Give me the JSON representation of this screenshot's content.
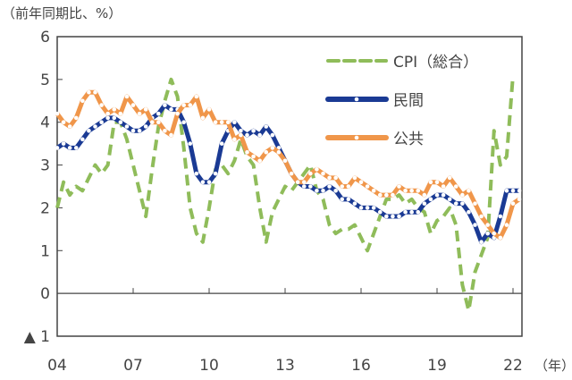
{
  "chart_data": {
    "type": "line",
    "ylabel": "（前年同期比、%）",
    "xlabel_unit": "（年）",
    "ylim": [
      -1,
      6
    ],
    "yticks": [
      6,
      5,
      4,
      3,
      2,
      1,
      0,
      -1
    ],
    "ytick_labels": [
      "6",
      "5",
      "4",
      "3",
      "2",
      "1",
      "0",
      "▲ 1"
    ],
    "xtick_labels": [
      "04",
      "07",
      "10",
      "13",
      "16",
      "19",
      "22"
    ],
    "x_start": "2004Q1",
    "frequency": "quarterly",
    "grid": false,
    "legend_position": "top-right",
    "series": [
      {
        "name": "CPI（総合）",
        "color": "#8fbc5a",
        "style": "dashed",
        "values": [
          2.0,
          2.6,
          2.3,
          2.5,
          2.4,
          2.7,
          3.0,
          2.8,
          3.0,
          4.0,
          4.0,
          3.6,
          3.0,
          2.4,
          1.8,
          2.9,
          3.9,
          4.5,
          5.0,
          4.6,
          3.4,
          2.0,
          1.4,
          1.2,
          2.0,
          2.9,
          3.0,
          2.8,
          3.1,
          3.6,
          3.2,
          3.0,
          2.0,
          1.2,
          1.9,
          2.2,
          2.5,
          2.4,
          2.6,
          2.8,
          3.0,
          2.4,
          2.2,
          1.6,
          1.4,
          1.5,
          1.5,
          1.6,
          1.3,
          1.0,
          1.4,
          1.8,
          2.2,
          2.2,
          2.3,
          2.1,
          2.2,
          2.0,
          1.9,
          1.4,
          1.7,
          1.8,
          2.0,
          1.6,
          0.2,
          -0.4,
          0.5,
          0.9,
          1.3,
          3.8,
          3.0,
          3.2,
          5.1
        ]
      },
      {
        "name": "民間",
        "color": "#1a3a94",
        "style": "solid-marker",
        "values": [
          3.4,
          3.5,
          3.4,
          3.4,
          3.6,
          3.8,
          3.9,
          4.0,
          4.1,
          4.1,
          4.0,
          3.9,
          3.8,
          3.8,
          3.9,
          4.1,
          4.2,
          4.4,
          4.3,
          4.3,
          4.0,
          3.5,
          2.8,
          2.6,
          2.6,
          2.8,
          3.5,
          3.8,
          4.0,
          3.8,
          3.7,
          3.8,
          3.7,
          3.9,
          3.7,
          3.4,
          3.1,
          2.8,
          2.6,
          2.5,
          2.5,
          2.4,
          2.4,
          2.5,
          2.4,
          2.2,
          2.2,
          2.1,
          2.0,
          2.0,
          2.0,
          1.9,
          1.8,
          1.8,
          1.8,
          1.9,
          1.9,
          1.9,
          2.1,
          2.2,
          2.3,
          2.3,
          2.2,
          2.1,
          2.1,
          1.9,
          1.6,
          1.2,
          1.4,
          1.3,
          1.8,
          2.4,
          2.4,
          2.4
        ]
      },
      {
        "name": "公共",
        "color": "#f0964a",
        "style": "solid-marker",
        "values": [
          4.2,
          4.0,
          3.9,
          4.1,
          4.5,
          4.7,
          4.7,
          4.4,
          4.2,
          4.3,
          4.2,
          4.6,
          4.4,
          4.2,
          4.3,
          4.0,
          4.0,
          3.8,
          3.7,
          4.2,
          4.4,
          4.4,
          4.6,
          4.1,
          4.3,
          4.0,
          4.0,
          4.0,
          3.6,
          3.7,
          3.3,
          3.2,
          3.1,
          3.3,
          3.4,
          3.3,
          3.1,
          2.8,
          2.6,
          2.6,
          2.8,
          2.9,
          2.8,
          2.7,
          2.7,
          2.5,
          2.5,
          2.7,
          2.6,
          2.5,
          2.4,
          2.3,
          2.3,
          2.3,
          2.5,
          2.4,
          2.4,
          2.4,
          2.3,
          2.6,
          2.6,
          2.5,
          2.7,
          2.5,
          2.3,
          2.4,
          2.1,
          1.8,
          1.6,
          1.4,
          1.3,
          1.6,
          2.1,
          2.2
        ]
      }
    ]
  }
}
